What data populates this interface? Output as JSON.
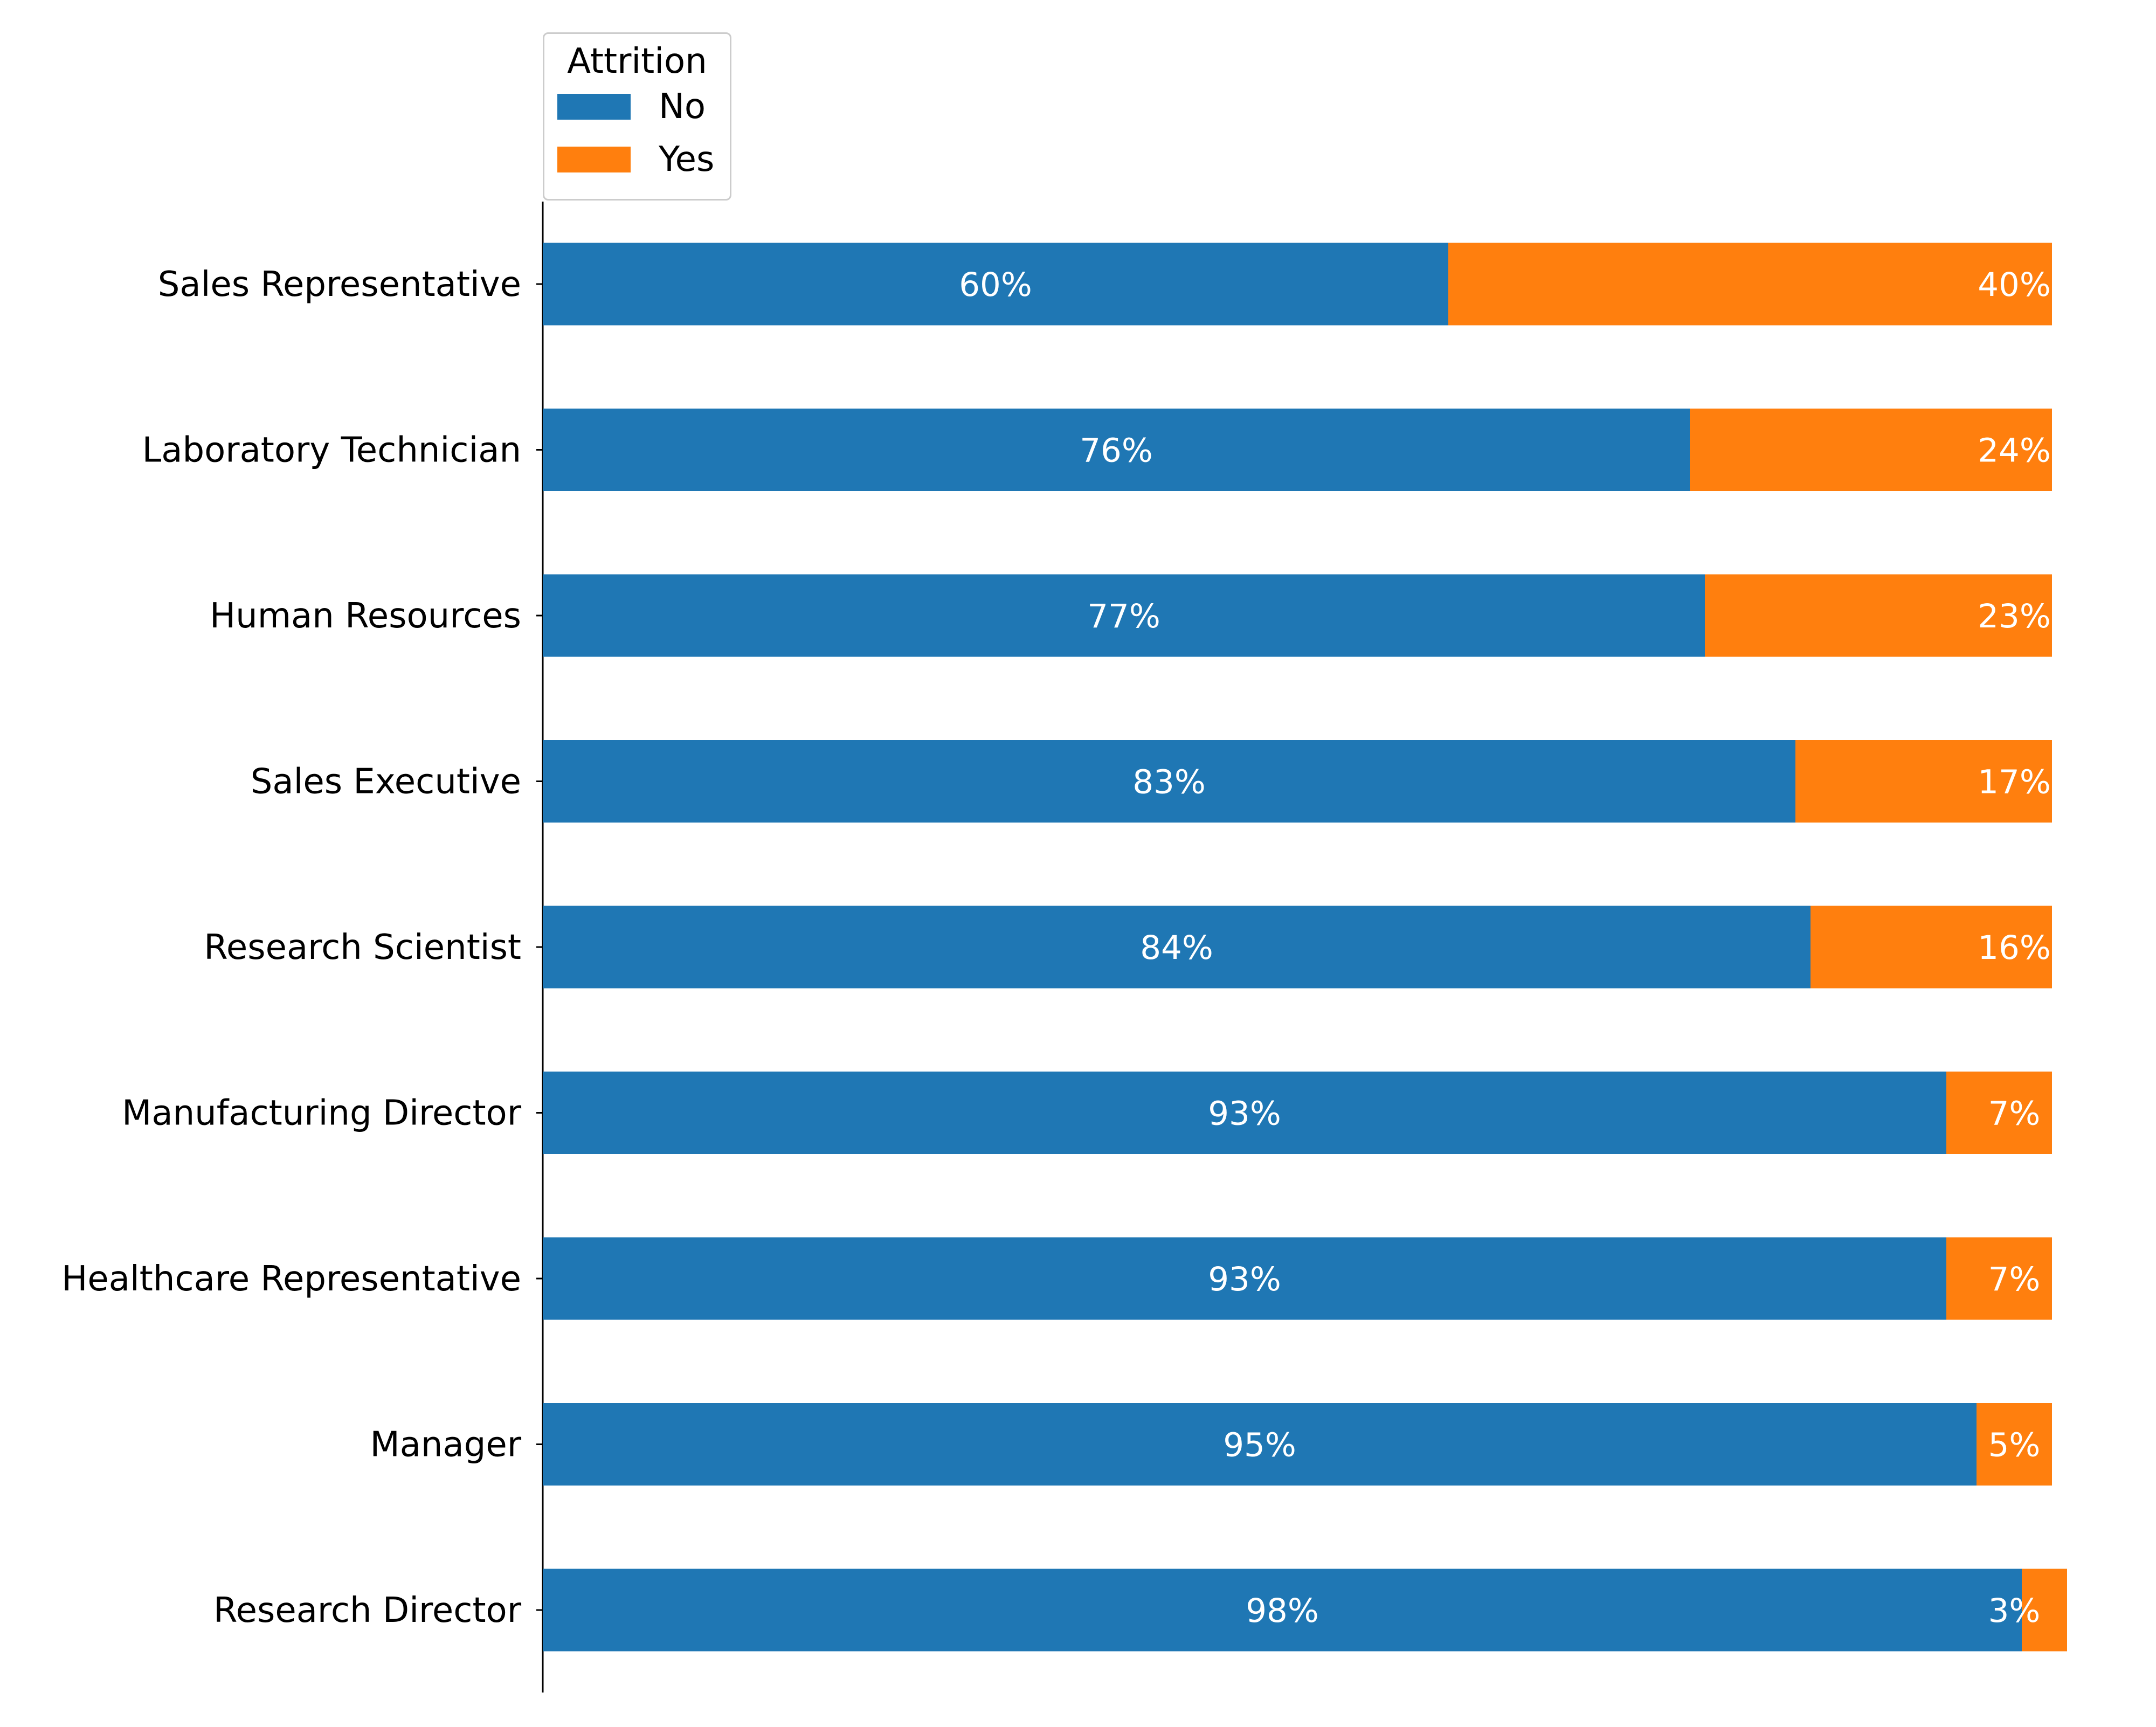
{
  "chart_data": {
    "type": "bar",
    "orientation": "horizontal",
    "stacked": true,
    "categories": [
      "Sales Representative",
      "Laboratory Technician",
      "Human Resources",
      "Sales Executive",
      "Research Scientist",
      "Manufacturing Director",
      "Healthcare Representative",
      "Manager",
      "Research Director"
    ],
    "series": [
      {
        "name": "No",
        "color": "#1f77b4",
        "values": [
          60,
          76,
          77,
          83,
          84,
          93,
          93,
          95,
          98
        ],
        "labels": [
          "60%",
          "76%",
          "77%",
          "83%",
          "84%",
          "93%",
          "93%",
          "95%",
          "98%"
        ]
      },
      {
        "name": "Yes",
        "color": "#ff7f0e",
        "values": [
          40,
          24,
          23,
          17,
          16,
          7,
          7,
          5,
          3
        ],
        "labels": [
          "40%",
          "24%",
          "23%",
          "17%",
          "16%",
          "7%",
          "7%",
          "5%",
          "3%"
        ]
      }
    ],
    "xlim": [
      0,
      100
    ],
    "legend": {
      "title": "Attrition",
      "position": "top-left"
    },
    "grid": false,
    "x_axis_visible": false
  }
}
